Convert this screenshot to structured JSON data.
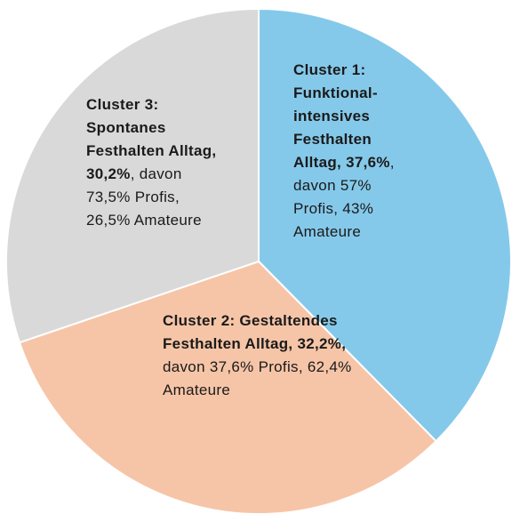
{
  "chart_data": {
    "type": "pie",
    "categories": [
      "Cluster 1: Funktional-intensives Festhalten Alltag,",
      "Cluster 2: Gestaltendes Festhalten Alltag,",
      "Cluster 3: Spontanes Festhalten Alltag,"
    ],
    "values": [
      37.6,
      32.2,
      30.2
    ],
    "value_labels": [
      "37,6%",
      "32,2%,",
      "30,2%"
    ],
    "descriptions": [
      ", davon 57% Profis, 43% Amateure",
      " davon 37,6% Profis, 62,4% Amateure",
      ", davon 73,5% Profis, 26,5% Amateure"
    ],
    "colors": [
      "#85c9ea",
      "#f6c5a7",
      "#d9d9d9"
    ]
  }
}
